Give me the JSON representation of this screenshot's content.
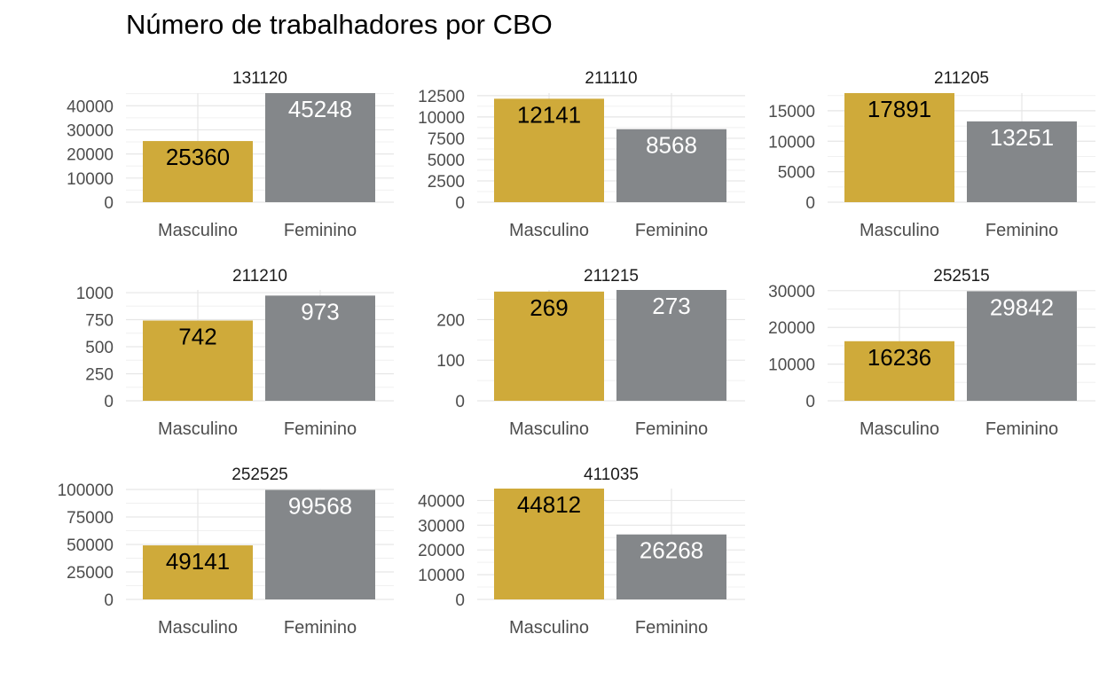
{
  "chart_data": {
    "type": "bar",
    "title": "Número de trabalhadores por CBO",
    "categories": [
      "Masculino",
      "Feminino"
    ],
    "colors": {
      "Masculino": "#CFAA3A",
      "Feminino": "#84878A"
    },
    "label_colors": {
      "Masculino": "#000000",
      "Feminino": "#FFFFFF"
    },
    "grid": true,
    "facets": [
      {
        "label": "131120",
        "values": [
          25360,
          45248
        ],
        "y_ticks": [
          0,
          10000,
          20000,
          30000,
          40000
        ],
        "ylim": [
          0,
          45248
        ]
      },
      {
        "label": "211110",
        "values": [
          12141,
          8568
        ],
        "y_ticks": [
          0,
          2500,
          5000,
          7500,
          10000,
          12500
        ],
        "ylim": [
          0,
          12800
        ]
      },
      {
        "label": "211205",
        "values": [
          17891,
          13251
        ],
        "y_ticks": [
          0,
          5000,
          10000,
          15000
        ],
        "ylim": [
          0,
          17891
        ]
      },
      {
        "label": "211210",
        "values": [
          742,
          973
        ],
        "y_ticks": [
          0,
          250,
          500,
          750,
          1000
        ],
        "ylim": [
          0,
          1025
        ]
      },
      {
        "label": "211215",
        "values": [
          269,
          273
        ],
        "y_ticks": [
          0,
          100,
          200
        ],
        "ylim": [
          0,
          273
        ]
      },
      {
        "label": "252515",
        "values": [
          16236,
          29842
        ],
        "y_ticks": [
          0,
          10000,
          20000,
          30000
        ],
        "ylim": [
          0,
          30200
        ]
      },
      {
        "label": "252525",
        "values": [
          49141,
          99568
        ],
        "y_ticks": [
          0,
          25000,
          50000,
          75000,
          100000
        ],
        "ylim": [
          0,
          100800
        ]
      },
      {
        "label": "411035",
        "values": [
          44812,
          26268
        ],
        "y_ticks": [
          0,
          10000,
          20000,
          30000,
          40000
        ],
        "ylim": [
          0,
          44812
        ]
      }
    ]
  }
}
